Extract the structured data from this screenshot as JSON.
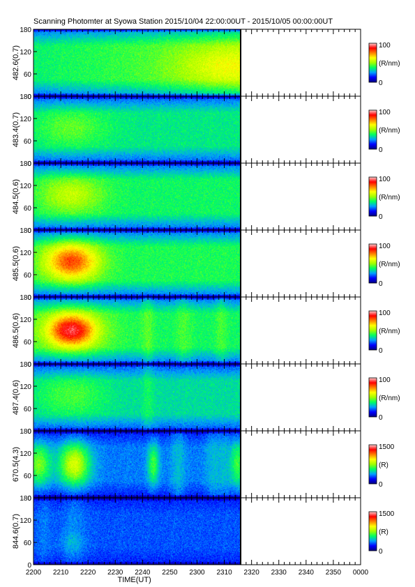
{
  "title": "Scanning Photomter at Syowa Station 2015/10/04 22:00:00UT - 2015/10/05 00:00:00UT",
  "chart_data": {
    "type": "heatmap",
    "title": "Scanning Photomter at Syowa Station 2015/10/04 22:00:00UT - 2015/10/05 00:00:00UT",
    "xlabel": "TIME(UT)",
    "x_ticks": [
      "2200",
      "2210",
      "2220",
      "2230",
      "2240",
      "2250",
      "2300",
      "2310",
      "2320",
      "2330",
      "2340",
      "2350",
      "0000"
    ],
    "x_range_minutes": [
      0,
      120
    ],
    "data_end_minute": 76,
    "y_ticks": [
      0,
      60,
      120,
      180
    ],
    "ylim": [
      0,
      180
    ],
    "colormap": [
      "#000080",
      "#0000ff",
      "#00a0ff",
      "#00ff60",
      "#a0ff00",
      "#ffff00",
      "#ff8000",
      "#ff0000",
      "#ffd0d0"
    ],
    "panels": [
      {
        "ylabel": "482.6(0.7)",
        "cbar_max": "100",
        "cbar_min": "0",
        "cbar_unit": "(R/nm)",
        "base": 0.28,
        "band": 0.22,
        "blobs": [
          {
            "t": 72,
            "el": 80,
            "sx": 14,
            "sy": 40,
            "amp": 0.15
          }
        ],
        "slant": 0.1,
        "stripes": []
      },
      {
        "ylabel": "483.4(0.7)",
        "cbar_max": "100",
        "cbar_min": "0",
        "cbar_unit": "(R/nm)",
        "base": 0.25,
        "band": 0.25,
        "blobs": [
          {
            "t": 14,
            "el": 95,
            "sx": 9,
            "sy": 35,
            "amp": 0.1
          }
        ],
        "slant": 0,
        "stripes": []
      },
      {
        "ylabel": "484.5(0.6)",
        "cbar_max": "100",
        "cbar_min": "0",
        "cbar_unit": "(R/nm)",
        "base": 0.27,
        "band": 0.27,
        "blobs": [
          {
            "t": 14,
            "el": 95,
            "sx": 8,
            "sy": 35,
            "amp": 0.17
          }
        ],
        "slant": 0,
        "stripes": []
      },
      {
        "ylabel": "485.5(0.6)",
        "cbar_max": "100",
        "cbar_min": "0",
        "cbar_unit": "(R/nm)",
        "base": 0.28,
        "band": 0.28,
        "blobs": [
          {
            "t": 14,
            "el": 95,
            "sx": 7,
            "sy": 35,
            "amp": 0.42
          }
        ],
        "slant": 0,
        "stripes": []
      },
      {
        "ylabel": "486.5(0.6)",
        "cbar_max": "100",
        "cbar_min": "0",
        "cbar_unit": "(R/nm)",
        "base": 0.28,
        "band": 0.25,
        "blobs": [
          {
            "t": 14,
            "el": 90,
            "sx": 6,
            "sy": 30,
            "amp": 0.45
          },
          {
            "t": 14,
            "el": 90,
            "sx": 12,
            "sy": 55,
            "amp": 0.1
          }
        ],
        "slant": 0,
        "stripes": [
          {
            "t": 42,
            "w": 1.5,
            "amp": 0.06
          },
          {
            "t": 55,
            "w": 2,
            "amp": 0.05
          },
          {
            "t": 69,
            "w": 1.5,
            "amp": 0.05
          }
        ]
      },
      {
        "ylabel": "487.4(0.6)",
        "cbar_max": "100",
        "cbar_min": "0",
        "cbar_unit": "(R/nm)",
        "base": 0.23,
        "band": 0.25,
        "blobs": [
          {
            "t": 14,
            "el": 95,
            "sx": 9,
            "sy": 40,
            "amp": 0.1
          }
        ],
        "slant": 0,
        "stripes": [
          {
            "t": 42,
            "w": 1.5,
            "amp": 0.05
          }
        ]
      },
      {
        "ylabel": "670.5(4.3)",
        "cbar_max": "1500",
        "cbar_min": "0",
        "cbar_unit": "(R)",
        "base": 0.15,
        "band": 0.18,
        "blobs": [
          {
            "t": 2,
            "el": 90,
            "sx": 3,
            "sy": 40,
            "amp": 0.25
          },
          {
            "t": 15,
            "el": 90,
            "sx": 4,
            "sy": 40,
            "amp": 0.35
          },
          {
            "t": 44,
            "el": 90,
            "sx": 1.5,
            "sy": 40,
            "amp": 0.2
          },
          {
            "t": 75,
            "el": 90,
            "sx": 2,
            "sy": 45,
            "amp": 0.2
          }
        ],
        "slant": 0,
        "stripes": [
          {
            "t": 53,
            "w": 2,
            "amp": 0.06
          },
          {
            "t": 66,
            "w": 2,
            "amp": 0.06
          },
          {
            "t": 70,
            "w": 1.5,
            "amp": 0.05
          }
        ]
      },
      {
        "ylabel": "844.6(0.7)",
        "cbar_max": "1500",
        "cbar_min": "0",
        "cbar_unit": "(R)",
        "base": 0.17,
        "band": 0.05,
        "blobs": [
          {
            "t": 14,
            "el": 60,
            "sx": 3,
            "sy": 20,
            "amp": 0.05
          }
        ],
        "slant": 0,
        "stripes": [
          {
            "t": 4,
            "w": 2,
            "amp": 0.03
          },
          {
            "t": 15,
            "w": 3,
            "amp": 0.04
          }
        ]
      }
    ]
  }
}
